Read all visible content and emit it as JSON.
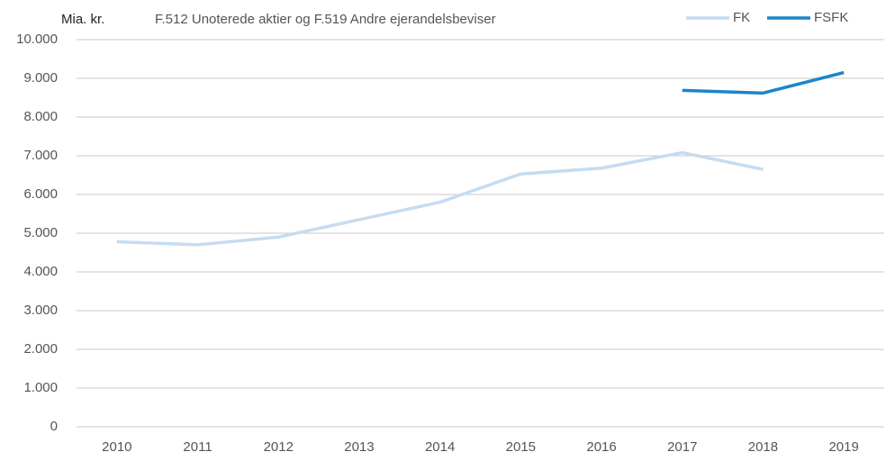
{
  "chart_data": {
    "type": "line",
    "title": "F.512 Unoterede aktier og F.519 Andre ejerandelsbeviser",
    "y_label": "Mia. kr.",
    "categories": [
      "2010",
      "2011",
      "2012",
      "2013",
      "2014",
      "2015",
      "2016",
      "2017",
      "2018",
      "2019"
    ],
    "series": [
      {
        "name": "FK",
        "color": "#c5dcf0",
        "values": [
          4780,
          4700,
          4900,
          5350,
          5800,
          6530,
          6680,
          7080,
          6650,
          null
        ]
      },
      {
        "name": "FSFK",
        "color": "#1a86c7",
        "values": [
          null,
          null,
          null,
          null,
          null,
          null,
          null,
          8690,
          8620,
          9150
        ]
      }
    ],
    "ylim": [
      0,
      10000
    ],
    "yticks": [
      0,
      {
        "value": 1000,
        "label": "1.000"
      },
      {
        "value": 2000,
        "label": "2.000"
      },
      {
        "value": 3000,
        "label": "3.000"
      },
      {
        "value": 4000,
        "label": "4.000"
      },
      {
        "value": 5000,
        "label": "5.000"
      },
      {
        "value": 6000,
        "label": "6.000"
      },
      {
        "value": 7000,
        "label": "7.000"
      },
      {
        "value": 8000,
        "label": "8.000"
      },
      {
        "value": 9000,
        "label": "9.000"
      },
      {
        "value": 10000,
        "label": "10.000"
      }
    ],
    "grid": true,
    "legend": "top-right"
  }
}
